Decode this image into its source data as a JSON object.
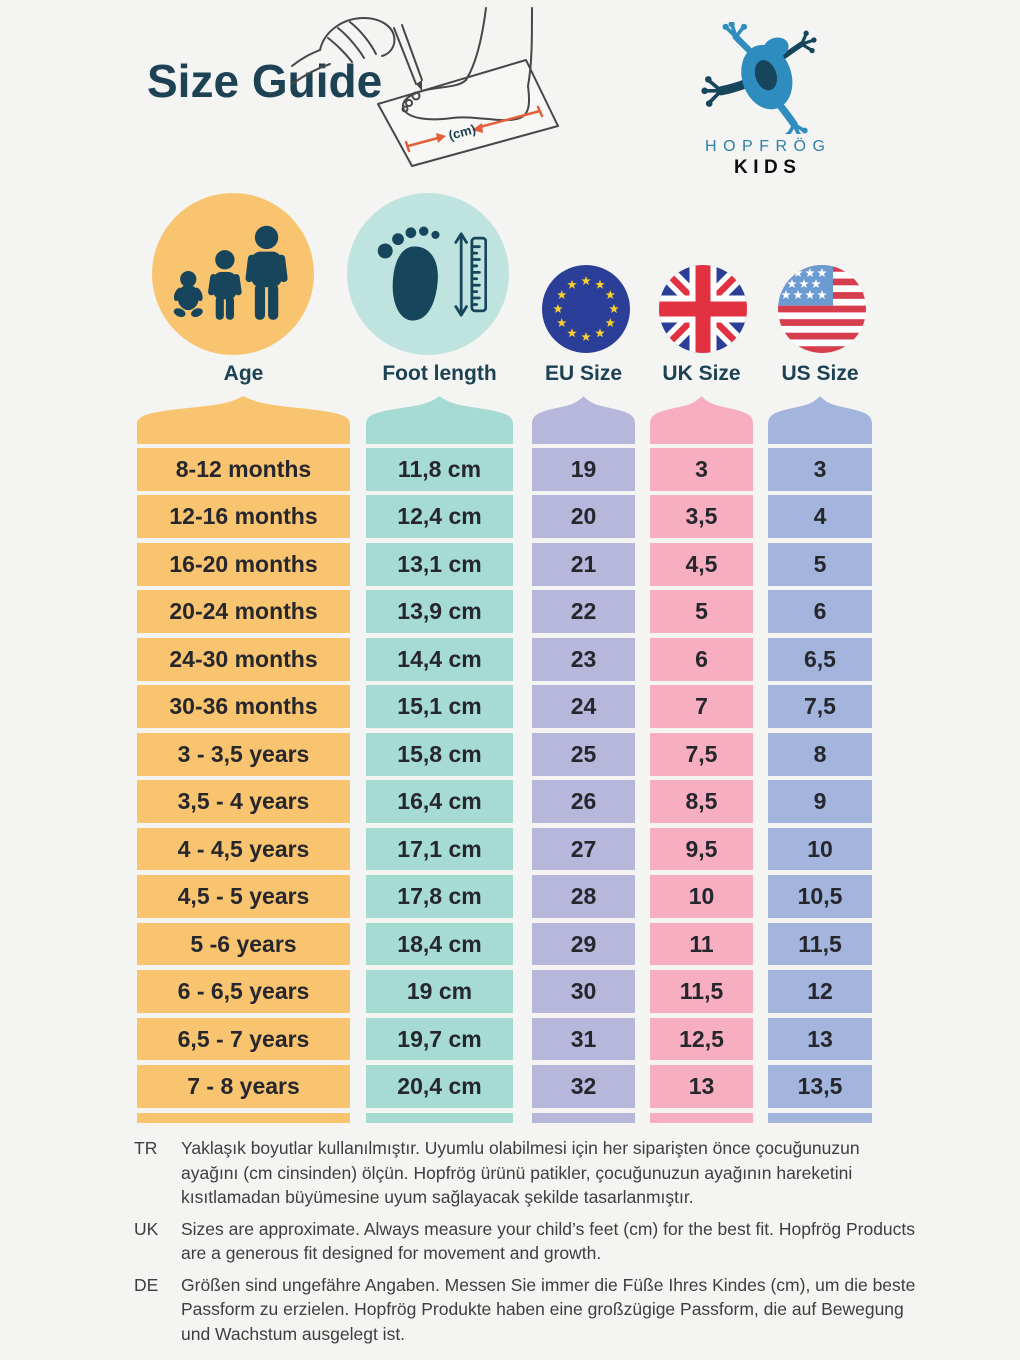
{
  "page": {
    "title": "Size Guide"
  },
  "logo": {
    "brand": "HOPFRÖG",
    "sub": "KIDS"
  },
  "illustration": {
    "unit_label": "(cm)"
  },
  "chart_data": {
    "type": "table",
    "title": "Size Guide",
    "columns": [
      "Age",
      "Foot length",
      "EU Size",
      "UK Size",
      "US Size"
    ],
    "rows": [
      [
        "8-12 months",
        "11,8 cm",
        "19",
        "3",
        "3"
      ],
      [
        "12-16 months",
        "12,4 cm",
        "20",
        "3,5",
        "4"
      ],
      [
        "16-20 months",
        "13,1 cm",
        "21",
        "4,5",
        "5"
      ],
      [
        "20-24 months",
        "13,9 cm",
        "22",
        "5",
        "6"
      ],
      [
        "24-30 months",
        "14,4 cm",
        "23",
        "6",
        "6,5"
      ],
      [
        "30-36 months",
        "15,1 cm",
        "24",
        "7",
        "7,5"
      ],
      [
        "3 - 3,5 years",
        "15,8 cm",
        "25",
        "7,5",
        "8"
      ],
      [
        "3,5 - 4 years",
        "16,4 cm",
        "26",
        "8,5",
        "9"
      ],
      [
        "4 - 4,5 years",
        "17,1 cm",
        "27",
        "9,5",
        "10"
      ],
      [
        "4,5 - 5 years",
        "17,8 cm",
        "28",
        "10",
        "10,5"
      ],
      [
        "5 -6 years",
        "18,4 cm",
        "29",
        "11",
        "11,5"
      ],
      [
        "6 - 6,5 years",
        "19 cm",
        "30",
        "11,5",
        "12"
      ],
      [
        "6,5 - 7 years",
        "19,7 cm",
        "31",
        "12,5",
        "13"
      ],
      [
        "7 - 8 years",
        "20,4 cm",
        "32",
        "13",
        "13,5"
      ]
    ]
  },
  "notes": [
    {
      "lang": "TR",
      "text": "Yaklaşık boyutlar kullanılmıştır. Uyumlu olabilmesi için her siparişten önce çocuğunuzun ayağını (cm cinsinden) ölçün. Hopfrög ürünü patikler, çocuğunuzun ayağının hareketini kısıtlamadan büyümesine uyum sağlayacak şekilde tasarlanmıştır."
    },
    {
      "lang": "UK",
      "text": "Sizes are approximate. Always measure your child’s feet (cm) for the best fit. Hopfrög Products are a generous fit designed for movement and growth."
    },
    {
      "lang": "DE",
      "text": "Größen sind ungefähre Angaben. Messen Sie immer die Füße Ihres Kindes (cm), um die beste Passform zu erzielen. Hopfrög Produkte haben eine großzügige Passform, die auf Bewegung und Wachstum ausgelegt ist."
    }
  ],
  "colors": {
    "background": "#F4F4F2",
    "navy": "#1C4254",
    "age_column": "#F8C46F",
    "foot_column": "#A6DBD4",
    "foot_circle": "#BFE3DE",
    "eu_column": "#B7B7DC",
    "uk_column": "#F7AEC0",
    "us_column": "#A3B5DC",
    "eu_flag_blue": "#2B3F98",
    "flag_red": "#E23140",
    "us_stripe_red": "#D63E4E",
    "us_canton_blue": "#6C9BD2",
    "star_gold": "#F8D12A",
    "frog_blue": "#2E8CBE",
    "arrow_orange": "#E2603A"
  }
}
